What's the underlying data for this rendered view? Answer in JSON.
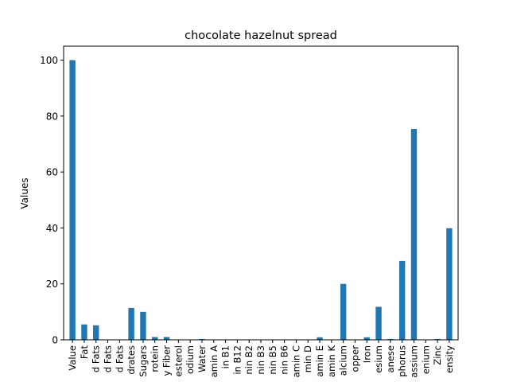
{
  "chart_data": {
    "type": "bar",
    "title": "chocolate hazelnut spread",
    "xlabel": "",
    "ylabel": "Values",
    "ylim": [
      0,
      105
    ],
    "yticks": [
      0,
      20,
      40,
      60,
      80,
      100
    ],
    "grid": false,
    "bar_color": "#1f77b4",
    "categories": [
      "Value",
      "Fat",
      "d Fats",
      "d Fats",
      "d Fats",
      "drates",
      "Sugars",
      "rotein",
      "y Fiber",
      "esterol",
      "odium",
      "Water",
      "amin A",
      "in B1",
      "in B12",
      "nin B2",
      "nin B3",
      "nin B5",
      "nin B6",
      "amin C",
      "min D",
      "amin E",
      "amin K",
      "alcium",
      "opper",
      "Iron",
      "esium",
      "anese",
      "phorus",
      "assium",
      "enium",
      "Zinc",
      "ensity"
    ],
    "values": [
      100,
      5.5,
      5.2,
      0,
      0,
      11.4,
      10,
      1,
      1,
      0,
      0,
      0.3,
      0,
      0,
      0,
      0,
      0,
      0,
      0,
      0,
      0,
      0.9,
      0,
      20,
      0,
      0.9,
      11.8,
      0.3,
      28.2,
      75.4,
      0,
      0.3,
      39.9
    ]
  }
}
